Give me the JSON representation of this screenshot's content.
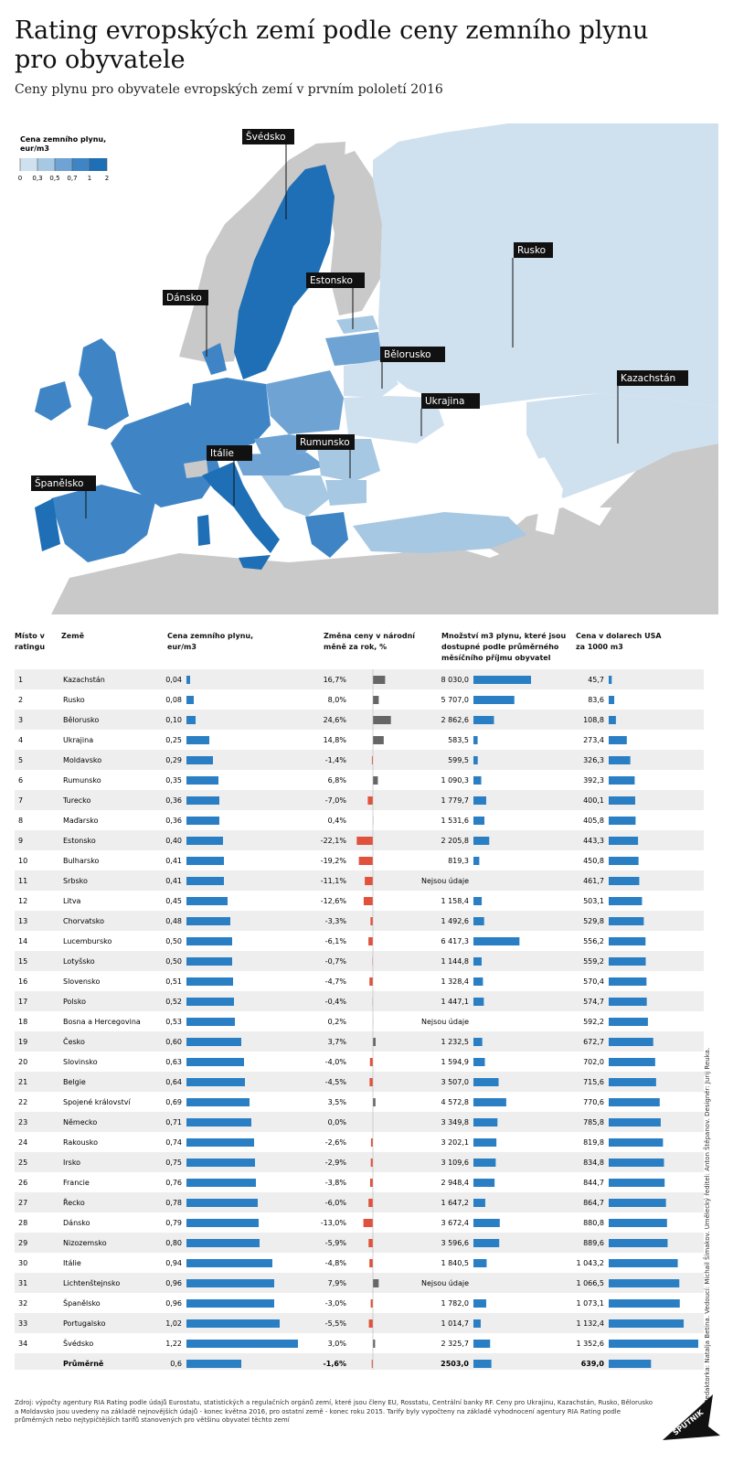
{
  "title": "Rating evropských zemí podle ceny zemního plynu pro obyvatele",
  "subtitle": "Ceny plynu pro obyvatele evropských zemí v prvním pololetí 2016",
  "legend": {
    "title_line1": "Cena zemního plynu,",
    "title_line2": "eur/m3",
    "ticks": [
      "0",
      "0,3",
      "0,5",
      "0,7",
      "1",
      "2"
    ],
    "colors": [
      "#cfe0ef",
      "#a7c8e3",
      "#6fa3d3",
      "#3f85c5",
      "#1e6fb5"
    ]
  },
  "colors": {
    "bar_blue": "#2a7fc4",
    "change_pos": "#666666",
    "change_neg": "#e0523c",
    "row_stripe": "#eeeeee",
    "map_gray": "#c9c9c9",
    "sea": "#ffffff"
  },
  "map_labels": [
    {
      "text": "Švédsko",
      "target": "Sweden"
    },
    {
      "text": "Estonsko",
      "target": "Estonia"
    },
    {
      "text": "Dánsko",
      "target": "Denmark"
    },
    {
      "text": "Rusko",
      "target": "Russia"
    },
    {
      "text": "Bělorusko",
      "target": "Belarus"
    },
    {
      "text": "Kazachstán",
      "target": "Kazakhstan"
    },
    {
      "text": "Ukrajina",
      "target": "Ukraine"
    },
    {
      "text": "Rumunsko",
      "target": "Romania"
    },
    {
      "text": "Itálie",
      "target": "Italy"
    },
    {
      "text": "Španělsko",
      "target": "Spain"
    }
  ],
  "headers": {
    "rank": [
      "Místo v",
      "ratingu"
    ],
    "country": [
      "Země"
    ],
    "price": [
      "Cena zemního plynu,",
      "eur/m3"
    ],
    "change": [
      "Změna ceny v národní",
      "měně za rok, %"
    ],
    "volume": [
      "Množství m3 plynu, které jsou",
      "dostupné podle průměrného",
      "měsíčního příjmu obyvatel"
    ],
    "usd": [
      "Cena v dolarech USA",
      "za 1000 m3"
    ]
  },
  "chart_data": {
    "type": "table",
    "columns": [
      "Místo v ratingu",
      "Země",
      "Cena zemního plynu, eur/m3",
      "Změna ceny v národní měně za rok, %",
      "Množství m3 plynu, které jsou dostupné podle průměrného měsíčního příjmu obyvatel",
      "Cena v dolarech USA za 1000 m3"
    ],
    "rows": [
      {
        "rank": "1",
        "country": "Kazachstán",
        "price": 0.04,
        "price_label": "0,04",
        "change": 16.7,
        "change_label": "16,7%",
        "volume": 8030.0,
        "volume_label": "8 030,0",
        "usd": 45.7,
        "usd_label": "45,7"
      },
      {
        "rank": "2",
        "country": "Rusko",
        "price": 0.08,
        "price_label": "0,08",
        "change": 8.0,
        "change_label": "8,0%",
        "volume": 5707.0,
        "volume_label": "5 707,0",
        "usd": 83.6,
        "usd_label": "83,6"
      },
      {
        "rank": "3",
        "country": "Bělorusko",
        "price": 0.1,
        "price_label": "0,10",
        "change": 24.6,
        "change_label": "24,6%",
        "volume": 2862.6,
        "volume_label": "2 862,6",
        "usd": 108.8,
        "usd_label": "108,8"
      },
      {
        "rank": "4",
        "country": "Ukrajina",
        "price": 0.25,
        "price_label": "0,25",
        "change": 14.8,
        "change_label": "14,8%",
        "volume": 583.5,
        "volume_label": "583,5",
        "usd": 273.4,
        "usd_label": "273,4"
      },
      {
        "rank": "5",
        "country": "Moldavsko",
        "price": 0.29,
        "price_label": "0,29",
        "change": -1.4,
        "change_label": "-1,4%",
        "volume": 599.5,
        "volume_label": "599,5",
        "usd": 326.3,
        "usd_label": "326,3"
      },
      {
        "rank": "6",
        "country": "Rumunsko",
        "price": 0.35,
        "price_label": "0,35",
        "change": 6.8,
        "change_label": "6,8%",
        "volume": 1090.3,
        "volume_label": "1 090,3",
        "usd": 392.3,
        "usd_label": "392,3"
      },
      {
        "rank": "7",
        "country": "Turecko",
        "price": 0.36,
        "price_label": "0,36",
        "change": -7.0,
        "change_label": "-7,0%",
        "volume": 1779.7,
        "volume_label": "1 779,7",
        "usd": 400.1,
        "usd_label": "400,1"
      },
      {
        "rank": "8",
        "country": "Maďarsko",
        "price": 0.36,
        "price_label": "0,36",
        "change": 0.4,
        "change_label": "0,4%",
        "volume": 1531.6,
        "volume_label": "1 531,6",
        "usd": 405.8,
        "usd_label": "405,8"
      },
      {
        "rank": "9",
        "country": "Estonsko",
        "price": 0.4,
        "price_label": "0,40",
        "change": -22.1,
        "change_label": "-22,1%",
        "volume": 2205.8,
        "volume_label": "2 205,8",
        "usd": 443.3,
        "usd_label": "443,3"
      },
      {
        "rank": "10",
        "country": "Bulharsko",
        "price": 0.41,
        "price_label": "0,41",
        "change": -19.2,
        "change_label": "-19,2%",
        "volume": 819.3,
        "volume_label": "819,3",
        "usd": 450.8,
        "usd_label": "450,8"
      },
      {
        "rank": "11",
        "country": "Srbsko",
        "price": 0.41,
        "price_label": "0,41",
        "change": -11.1,
        "change_label": "-11,1%",
        "volume": null,
        "volume_label": "Nejsou údaje",
        "usd": 461.7,
        "usd_label": "461,7"
      },
      {
        "rank": "12",
        "country": "Litva",
        "price": 0.45,
        "price_label": "0,45",
        "change": -12.6,
        "change_label": "-12,6%",
        "volume": 1158.4,
        "volume_label": "1 158,4",
        "usd": 503.1,
        "usd_label": "503,1"
      },
      {
        "rank": "13",
        "country": "Chorvatsko",
        "price": 0.48,
        "price_label": "0,48",
        "change": -3.3,
        "change_label": "-3,3%",
        "volume": 1492.6,
        "volume_label": "1 492,6",
        "usd": 529.8,
        "usd_label": "529,8"
      },
      {
        "rank": "14",
        "country": "Lucembursko",
        "price": 0.5,
        "price_label": "0,50",
        "change": -6.1,
        "change_label": "-6,1%",
        "volume": 6417.3,
        "volume_label": "6 417,3",
        "usd": 556.2,
        "usd_label": "556,2"
      },
      {
        "rank": "15",
        "country": "Lotyšsko",
        "price": 0.5,
        "price_label": "0,50",
        "change": -0.7,
        "change_label": "-0,7%",
        "volume": 1144.8,
        "volume_label": "1 144,8",
        "usd": 559.2,
        "usd_label": "559,2"
      },
      {
        "rank": "16",
        "country": "Slovensko",
        "price": 0.51,
        "price_label": "0,51",
        "change": -4.7,
        "change_label": "-4,7%",
        "volume": 1328.4,
        "volume_label": "1 328,4",
        "usd": 570.4,
        "usd_label": "570,4"
      },
      {
        "rank": "17",
        "country": "Polsko",
        "price": 0.52,
        "price_label": "0,52",
        "change": -0.4,
        "change_label": "-0,4%",
        "volume": 1447.1,
        "volume_label": "1 447,1",
        "usd": 574.7,
        "usd_label": "574,7"
      },
      {
        "rank": "18",
        "country": "Bosna a Hercegovina",
        "price": 0.53,
        "price_label": "0,53",
        "change": 0.2,
        "change_label": "0,2%",
        "volume": null,
        "volume_label": "Nejsou údaje",
        "usd": 592.2,
        "usd_label": "592,2"
      },
      {
        "rank": "19",
        "country": "Česko",
        "price": 0.6,
        "price_label": "0,60",
        "change": 3.7,
        "change_label": "3,7%",
        "volume": 1232.5,
        "volume_label": "1 232,5",
        "usd": 672.7,
        "usd_label": "672,7"
      },
      {
        "rank": "20",
        "country": "Slovinsko",
        "price": 0.63,
        "price_label": "0,63",
        "change": -4.0,
        "change_label": "-4,0%",
        "volume": 1594.9,
        "volume_label": "1 594,9",
        "usd": 702.0,
        "usd_label": "702,0"
      },
      {
        "rank": "21",
        "country": "Belgie",
        "price": 0.64,
        "price_label": "0,64",
        "change": -4.5,
        "change_label": "-4,5%",
        "volume": 3507.0,
        "volume_label": "3 507,0",
        "usd": 715.6,
        "usd_label": "715,6"
      },
      {
        "rank": "22",
        "country": "Spojené království",
        "price": 0.69,
        "price_label": "0,69",
        "change": 3.5,
        "change_label": "3,5%",
        "volume": 4572.8,
        "volume_label": "4 572,8",
        "usd": 770.6,
        "usd_label": "770,6"
      },
      {
        "rank": "23",
        "country": "Německo",
        "price": 0.71,
        "price_label": "0,71",
        "change": 0.0,
        "change_label": "0,0%",
        "volume": 3349.8,
        "volume_label": "3 349,8",
        "usd": 785.8,
        "usd_label": "785,8"
      },
      {
        "rank": "24",
        "country": "Rakousko",
        "price": 0.74,
        "price_label": "0,74",
        "change": -2.6,
        "change_label": "-2,6%",
        "volume": 3202.1,
        "volume_label": "3 202,1",
        "usd": 819.8,
        "usd_label": "819,8"
      },
      {
        "rank": "25",
        "country": "Irsko",
        "price": 0.75,
        "price_label": "0,75",
        "change": -2.9,
        "change_label": "-2,9%",
        "volume": 3109.6,
        "volume_label": "3 109,6",
        "usd": 834.8,
        "usd_label": "834,8"
      },
      {
        "rank": "26",
        "country": "Francie",
        "price": 0.76,
        "price_label": "0,76",
        "change": -3.8,
        "change_label": "-3,8%",
        "volume": 2948.4,
        "volume_label": "2 948,4",
        "usd": 844.7,
        "usd_label": "844,7"
      },
      {
        "rank": "27",
        "country": "Řecko",
        "price": 0.78,
        "price_label": "0,78",
        "change": -6.0,
        "change_label": "-6,0%",
        "volume": 1647.2,
        "volume_label": "1 647,2",
        "usd": 864.7,
        "usd_label": "864,7"
      },
      {
        "rank": "28",
        "country": "Dánsko",
        "price": 0.79,
        "price_label": "0,79",
        "change": -13.0,
        "change_label": "-13,0%",
        "volume": 3672.4,
        "volume_label": "3 672,4",
        "usd": 880.8,
        "usd_label": "880,8"
      },
      {
        "rank": "29",
        "country": "Nizozemsko",
        "price": 0.8,
        "price_label": "0,80",
        "change": -5.9,
        "change_label": "-5,9%",
        "volume": 3596.6,
        "volume_label": "3 596,6",
        "usd": 889.6,
        "usd_label": "889,6"
      },
      {
        "rank": "30",
        "country": "Itálie",
        "price": 0.94,
        "price_label": "0,94",
        "change": -4.8,
        "change_label": "-4,8%",
        "volume": 1840.5,
        "volume_label": "1 840,5",
        "usd": 1043.2,
        "usd_label": "1 043,2"
      },
      {
        "rank": "31",
        "country": "Lichtenštejnsko",
        "price": 0.96,
        "price_label": "0,96",
        "change": 7.9,
        "change_label": "7,9%",
        "volume": null,
        "volume_label": "Nejsou údaje",
        "usd": 1066.5,
        "usd_label": "1 066,5"
      },
      {
        "rank": "32",
        "country": "Španělsko",
        "price": 0.96,
        "price_label": "0,96",
        "change": -3.0,
        "change_label": "-3,0%",
        "volume": 1782.0,
        "volume_label": "1 782,0",
        "usd": 1073.1,
        "usd_label": "1 073,1"
      },
      {
        "rank": "33",
        "country": "Portugalsko",
        "price": 1.02,
        "price_label": "1,02",
        "change": -5.5,
        "change_label": "-5,5%",
        "volume": 1014.7,
        "volume_label": "1 014,7",
        "usd": 1132.4,
        "usd_label": "1 132,4"
      },
      {
        "rank": "34",
        "country": "Švédsko",
        "price": 1.22,
        "price_label": "1,22",
        "change": 3.0,
        "change_label": "3,0%",
        "volume": 2325.7,
        "volume_label": "2 325,7",
        "usd": 1352.6,
        "usd_label": "1 352,6"
      }
    ],
    "average": {
      "label": "Průměrně",
      "price": 0.6,
      "price_label": "0,6",
      "change": -1.6,
      "change_label": "-1,6%",
      "volume": 2503.0,
      "volume_label": "2503,0",
      "usd": 639.0,
      "usd_label": "639,0"
    }
  },
  "source": "Zdroj: výpočty agentury RIA Rating podle údajů Eurostatu, statistických a regulačních orgánů zemí, které jsou členy EU, Rosstatu, Centrální banky RF. Ceny pro Ukrajinu, Kazachstán, Rusko, Bělorusko a Moldavsko jsou uvedeny na základě nejnovějších údajů - konec května 2016, pro ostatní země - konec roku 2015. Tarify byly vypočteny na základě vyhodnocení agentury RIA Rating podle průměrných nebo nejtypičtějších tarifů stanovených pro většinu obyvatel těchto zemí",
  "credits": "Redaktorka: Natalja Betina. Vedoucí: Michail Šimakov. Umělecký ředitel: Anton Štěpanov. Designér: Jurij Reuka.",
  "logo_text": "SPUTNIK"
}
